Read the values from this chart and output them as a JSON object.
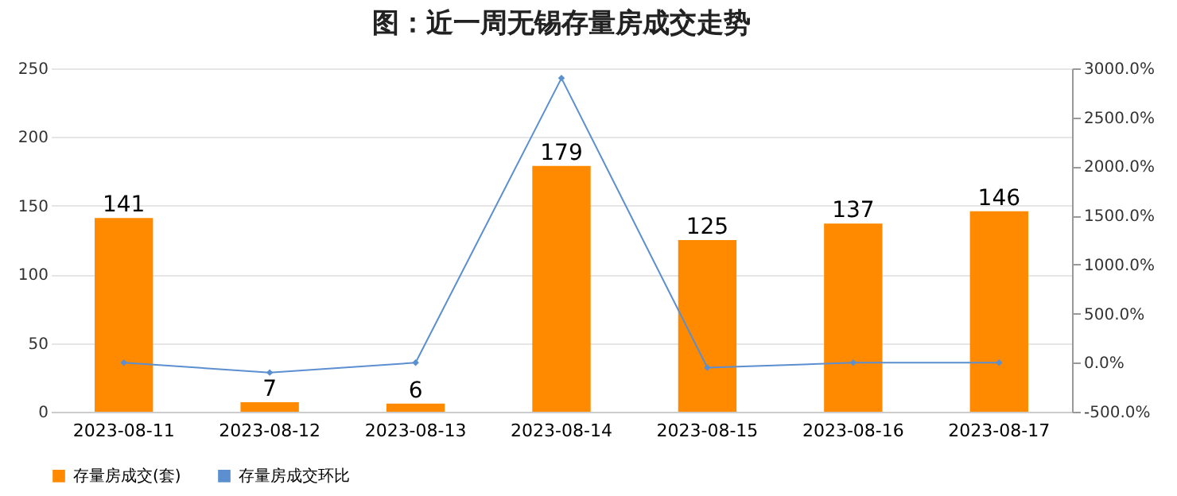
{
  "chart_data": {
    "type": "bar",
    "title": "图：近一周无锡存量房成交走势",
    "categories": [
      "2023-08-11",
      "2023-08-12",
      "2023-08-13",
      "2023-08-14",
      "2023-08-15",
      "2023-08-16",
      "2023-08-17"
    ],
    "series": [
      {
        "name": "存量房成交(套)",
        "color": "#ff8a00",
        "values": [
          141,
          7,
          6,
          179,
          125,
          137,
          146
        ],
        "value_labels": [
          "141",
          "7",
          "6",
          "179",
          "125",
          "137",
          "146"
        ]
      },
      {
        "name": "存量房成交环比",
        "color": "#5b8fd0",
        "type": "line",
        "axis": "y2",
        "marker": "diamond",
        "values": [
          0,
          -100,
          0,
          2900,
          -50,
          0,
          0
        ]
      }
    ],
    "ylim": [
      0,
      250
    ],
    "yticks": [
      0,
      50,
      100,
      150,
      200,
      250
    ],
    "y2lim": [
      -500,
      3000
    ],
    "y2ticks": [
      {
        "value": -500,
        "label": "-500.0%"
      },
      {
        "value": 0,
        "label": "0.0%"
      },
      {
        "value": 500,
        "label": "500.0%"
      },
      {
        "value": 1000,
        "label": "1000.0%"
      },
      {
        "value": 1500,
        "label": "1500.0%"
      },
      {
        "value": 2000,
        "label": "2000.0%"
      },
      {
        "value": 2500,
        "label": "2500.0%"
      },
      {
        "value": 3000,
        "label": "3000.0%"
      }
    ],
    "grid": "y",
    "legend": "bottom"
  }
}
